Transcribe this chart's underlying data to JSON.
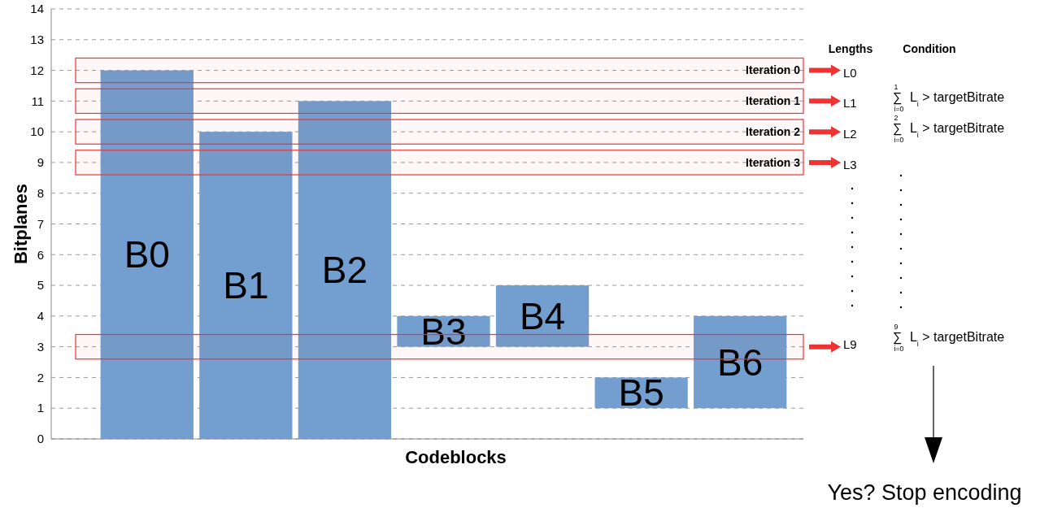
{
  "chart_data": {
    "type": "bar",
    "xlabel": "Codeblocks",
    "ylabel": "Bitplanes",
    "categories": [
      "B0",
      "B1",
      "B2",
      "B3",
      "B4",
      "B5",
      "B6"
    ],
    "values": [
      12,
      10,
      11,
      1,
      2,
      1,
      3
    ],
    "base": [
      0,
      0,
      0,
      3,
      3,
      1,
      1
    ],
    "color": "#729fcf",
    "ylim": [
      0,
      14
    ],
    "yticks": [
      0,
      1,
      2,
      3,
      4,
      5,
      6,
      7,
      8,
      9,
      10,
      11,
      12,
      13,
      14
    ],
    "grid": "y",
    "bands": [
      {
        "axis": "y",
        "from": 11.6,
        "to": 12.4,
        "label": "Iteration 0",
        "color": "#ee3333"
      },
      {
        "axis": "y",
        "from": 10.6,
        "to": 11.4,
        "label": "Iteration 1",
        "color": "#ee3333"
      },
      {
        "axis": "y",
        "from": 9.6,
        "to": 10.4,
        "label": "Iteration 2",
        "color": "#ee3333"
      },
      {
        "axis": "y",
        "from": 8.6,
        "to": 9.4,
        "label": "Iteration 3",
        "color": "#ee3333"
      },
      {
        "axis": "y",
        "from": 2.6,
        "to": 3.4,
        "color": "#ee3333"
      }
    ],
    "annotations": [
      "Lengths",
      "Condition",
      "L0",
      "L1",
      "L2",
      "L3",
      "L9",
      "∑$^{1}$$_{i=0}$ L$_{i}$ > targetBitrate",
      "∑$^{2}$$_{i=0}$ L$_{i}$ > targetBitrate",
      "∑$^{9}$$_{i=0}$ L$_{i}$ > targetBitrate",
      "Yes? Stop encoding"
    ]
  }
}
